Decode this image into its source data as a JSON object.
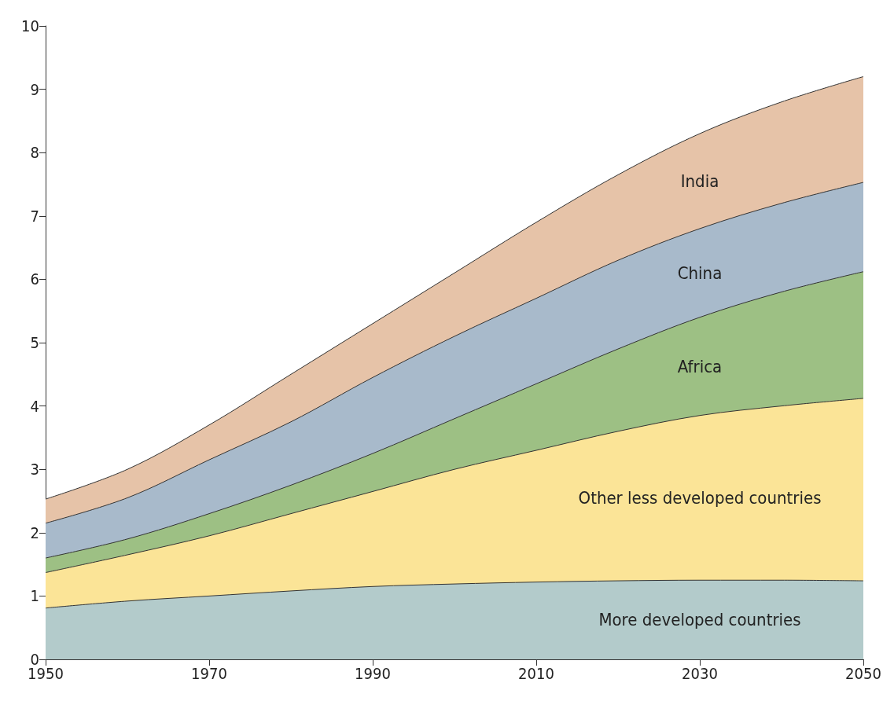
{
  "chart_data": {
    "type": "area",
    "stacked": true,
    "x": [
      1950,
      1960,
      1970,
      1980,
      1990,
      2000,
      2010,
      2020,
      2030,
      2040,
      2050
    ],
    "series": [
      {
        "name": "More developed countries",
        "color": "#b3cbcb",
        "values": [
          0.81,
          0.92,
          1.0,
          1.08,
          1.15,
          1.19,
          1.22,
          1.24,
          1.25,
          1.25,
          1.24
        ]
      },
      {
        "name": "Other less developed countries",
        "color": "#fbe497",
        "values": [
          0.56,
          0.73,
          0.95,
          1.22,
          1.5,
          1.81,
          2.08,
          2.36,
          2.6,
          2.75,
          2.88
        ]
      },
      {
        "name": "Africa",
        "color": "#9dc084",
        "values": [
          0.23,
          0.25,
          0.35,
          0.45,
          0.6,
          0.8,
          1.05,
          1.3,
          1.55,
          1.8,
          2.0
        ]
      },
      {
        "name": "China",
        "color": "#a8bacb",
        "values": [
          0.55,
          0.65,
          0.85,
          1.0,
          1.2,
          1.3,
          1.35,
          1.4,
          1.4,
          1.4,
          1.41
        ]
      },
      {
        "name": "India",
        "color": "#e6c3a8",
        "values": [
          0.38,
          0.45,
          0.55,
          0.75,
          0.85,
          1.0,
          1.2,
          1.35,
          1.5,
          1.6,
          1.67
        ]
      }
    ],
    "xlim": [
      1950,
      2050
    ],
    "xticks": [
      1950,
      1970,
      1990,
      2010,
      2030,
      2050
    ],
    "ylim": [
      0,
      10
    ],
    "yticks": [
      0,
      1,
      2,
      3,
      4,
      5,
      6,
      7,
      8,
      9,
      10
    ],
    "grid": false,
    "legend": false
  }
}
